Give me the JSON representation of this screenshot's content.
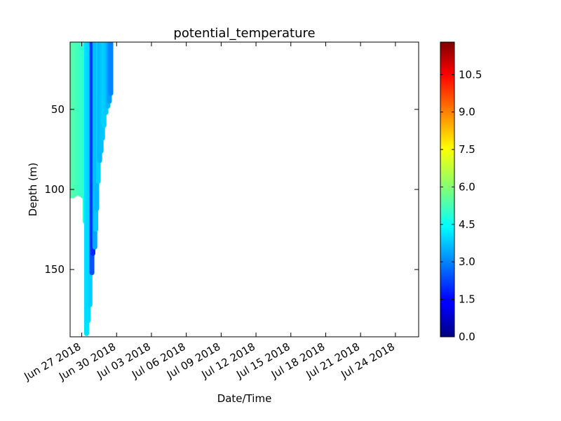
{
  "chart_data": {
    "type": "scatter",
    "title": "potential_temperature",
    "xlabel": "Date/Time",
    "ylabel": "Depth (m)",
    "xlim": [
      "2018-06-26",
      "2018-07-26"
    ],
    "ylim": [
      192,
      8
    ],
    "y_inverted": true,
    "x_tick_labels": [
      "Jun 27 2018",
      "Jun 30 2018",
      "Jul 03 2018",
      "Jul 06 2018",
      "Jul 09 2018",
      "Jul 12 2018",
      "Jul 15 2018",
      "Jul 18 2018",
      "Jul 21 2018",
      "Jul 24 2018"
    ],
    "x_tick_dates": [
      "2018-06-27",
      "2018-06-30",
      "2018-07-03",
      "2018-07-06",
      "2018-07-09",
      "2018-07-12",
      "2018-07-15",
      "2018-07-18",
      "2018-07-21",
      "2018-07-24"
    ],
    "y_ticks": [
      50,
      100,
      150
    ],
    "y_tick_labels": [
      "50",
      "100",
      "150"
    ],
    "colorbar": {
      "colormap": "jet",
      "vmin": 0,
      "vmax": 11.8,
      "ticks": [
        0,
        1.5,
        3,
        4.5,
        6,
        7.5,
        9,
        10.5
      ],
      "tick_labels": [
        "0.0",
        "1.5",
        "3.0",
        "4.5",
        "6.0",
        "7.5",
        "9.0",
        "10.5"
      ]
    },
    "legend": "none",
    "grid": false,
    "profiles": [
      {
        "time": "2018-06-26T02:00",
        "depth_min": 8,
        "depth_max": 104,
        "temperature": 5.3
      },
      {
        "time": "2018-06-26T06:00",
        "depth_min": 8,
        "depth_max": 104,
        "temperature": 5.4
      },
      {
        "time": "2018-06-26T11:00",
        "depth_min": 8,
        "depth_max": 103,
        "temperature": 5.3
      },
      {
        "time": "2018-06-26T16:00",
        "depth_min": 8,
        "depth_max": 102,
        "temperature": 5.2
      },
      {
        "time": "2018-06-26T21:00",
        "depth_min": 8,
        "depth_max": 103,
        "temperature": 5.1
      },
      {
        "time": "2018-06-27T02:00",
        "depth_min": 8,
        "depth_max": 104,
        "temperature": 5.0
      },
      {
        "time": "2018-06-27T07:00",
        "depth_min": 8,
        "depth_max": 120,
        "temperature": 4.9
      },
      {
        "time": "2018-06-27T10:00",
        "depth_min": 8,
        "depth_max": 190,
        "temperature": 4.1
      },
      {
        "time": "2018-06-27T13:00",
        "depth_min": 8,
        "depth_max": 182,
        "temperature": 4.0
      },
      {
        "time": "2018-06-27T17:00",
        "depth_min": 8,
        "depth_max": 172,
        "temperature": 3.9
      },
      {
        "time": "2018-06-27T21:00",
        "depth_min": 8,
        "depth_max": 152,
        "temperature": 2.4
      },
      {
        "time": "2018-06-27T23:00",
        "depth_min": 8,
        "depth_max": 140,
        "temperature": 1.9
      },
      {
        "time": "2018-06-28T01:00",
        "depth_min": 8,
        "depth_max": 130,
        "temperature": 2.1
      },
      {
        "time": "2018-06-28T03:00",
        "depth_min": 8,
        "depth_max": 136,
        "temperature": 3.4
      },
      {
        "time": "2018-06-28T05:00",
        "depth_min": 8,
        "depth_max": 125,
        "temperature": 3.8
      },
      {
        "time": "2018-06-28T07:00",
        "depth_min": 8,
        "depth_max": 112,
        "temperature": 3.6
      },
      {
        "time": "2018-06-28T10:00",
        "depth_min": 8,
        "depth_max": 95,
        "temperature": 3.9
      },
      {
        "time": "2018-06-28T13:00",
        "depth_min": 8,
        "depth_max": 82,
        "temperature": 3.6
      },
      {
        "time": "2018-06-28T16:00",
        "depth_min": 8,
        "depth_max": 76,
        "temperature": 3.7
      },
      {
        "time": "2018-06-28T19:00",
        "depth_min": 8,
        "depth_max": 68,
        "temperature": 3.8
      },
      {
        "time": "2018-06-28T22:00",
        "depth_min": 8,
        "depth_max": 60,
        "temperature": 3.9
      },
      {
        "time": "2018-06-29T02:00",
        "depth_min": 8,
        "depth_max": 52,
        "temperature": 3.8
      },
      {
        "time": "2018-06-29T06:00",
        "depth_min": 8,
        "depth_max": 48,
        "temperature": 3.6
      },
      {
        "time": "2018-06-29T09:00",
        "depth_min": 8,
        "depth_max": 45,
        "temperature": 3.3
      },
      {
        "time": "2018-06-29T12:00",
        "depth_min": 8,
        "depth_max": 40,
        "temperature": 3.0
      }
    ]
  }
}
